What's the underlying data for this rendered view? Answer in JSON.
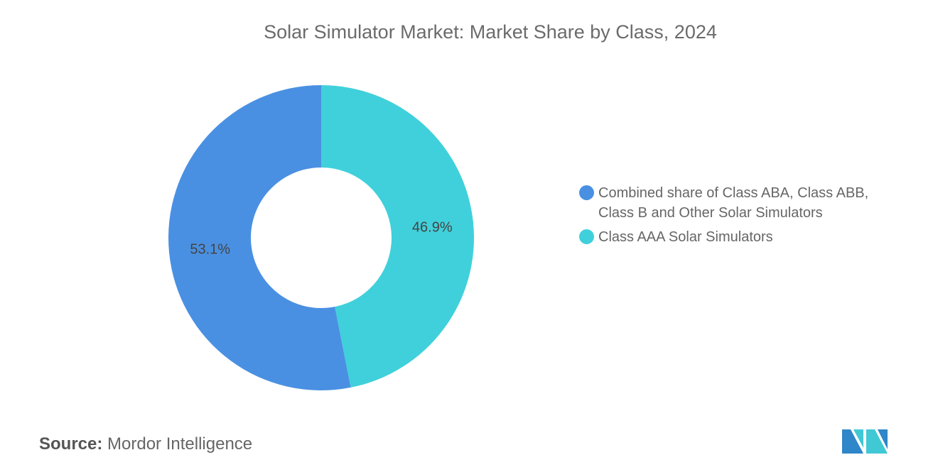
{
  "chart_data": {
    "type": "pie",
    "donut": true,
    "title": "Solar Simulator Market: Market Share by Class, 2024",
    "slices": [
      {
        "label": "Class AAA Solar Simulators",
        "value": 46.9,
        "data_label": "46.9%",
        "color": "#40D0DB"
      },
      {
        "label": "Combined share of Class ABA, Class ABB, Class B and Other Solar Simulators",
        "value": 53.1,
        "data_label": "53.1%",
        "color": "#4A90E2"
      }
    ],
    "legend": {
      "placement": "right",
      "entries": [
        {
          "line1": "Combined share of Class ABA, Class ABB,",
          "line2": "Class B and Other Solar Simulators",
          "color": "#4A90E2"
        },
        {
          "line1": "Class AAA Solar Simulators",
          "line2": "",
          "color": "#40D0DB"
        }
      ]
    }
  },
  "source": {
    "label": "Source:",
    "value": "Mordor Intelligence"
  },
  "logo_text": "Mordor Intelligence"
}
